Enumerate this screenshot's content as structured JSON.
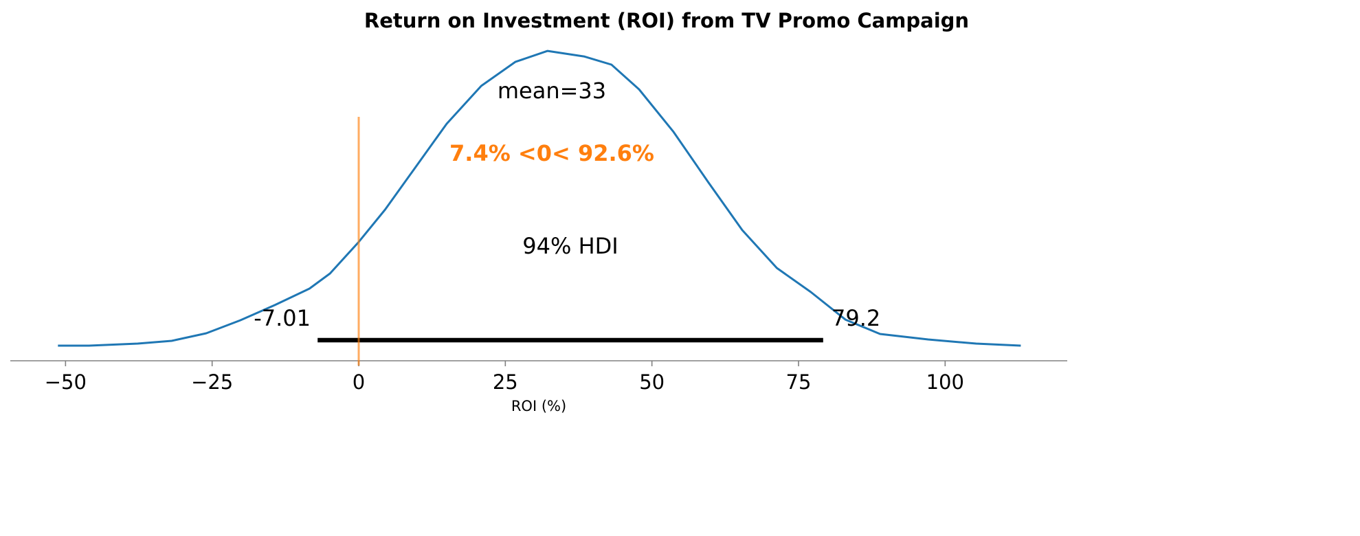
{
  "chart_data": {
    "type": "area",
    "title": "Return on Investment (ROI) from TV Promo Campaign",
    "xlabel": "ROI (%)",
    "ylabel": "",
    "xlim": [
      -59,
      121
    ],
    "xticks": [
      -50,
      -25,
      0,
      25,
      50,
      75,
      100
    ],
    "xtick_labels": [
      "−50",
      "−25",
      "0",
      "25",
      "50",
      "75",
      "100"
    ],
    "grid": false,
    "y_axis_visible": false,
    "series": [
      {
        "color": "#1f77b4",
        "x": [
          -51.3,
          -46,
          -37.7,
          -31.9,
          -26,
          -20.2,
          -14.3,
          -8.4,
          -4.9,
          0,
          4.5,
          9.1,
          15,
          20.9,
          26.7,
          32.2,
          38.4,
          43.1,
          47.8,
          53.7,
          59.6,
          65.4,
          71.3,
          77.1,
          83,
          88.9,
          97.1,
          105.3,
          112.9
        ],
        "density": [
          0,
          0,
          0.00012,
          0.00028,
          0.00072,
          0.00148,
          0.00237,
          0.00333,
          0.00421,
          0.00605,
          0.00794,
          0.01014,
          0.01295,
          0.01516,
          0.01656,
          0.0172,
          0.01688,
          0.0164,
          0.01496,
          0.01247,
          0.00954,
          0.00674,
          0.00453,
          0.00313,
          0.00152,
          0.00068,
          0.00036,
          0.00012,
          0
        ]
      }
    ],
    "mean_label": "mean=33",
    "hdi": {
      "low": -7.01,
      "high": 79.2,
      "low_label": "-7.01",
      "high_label": "79.2",
      "label": "94% HDI",
      "color": "#000000"
    },
    "ref_val": {
      "value": 0,
      "label": "7.4% <0< 92.6%",
      "color": "#ff7f0e"
    }
  }
}
